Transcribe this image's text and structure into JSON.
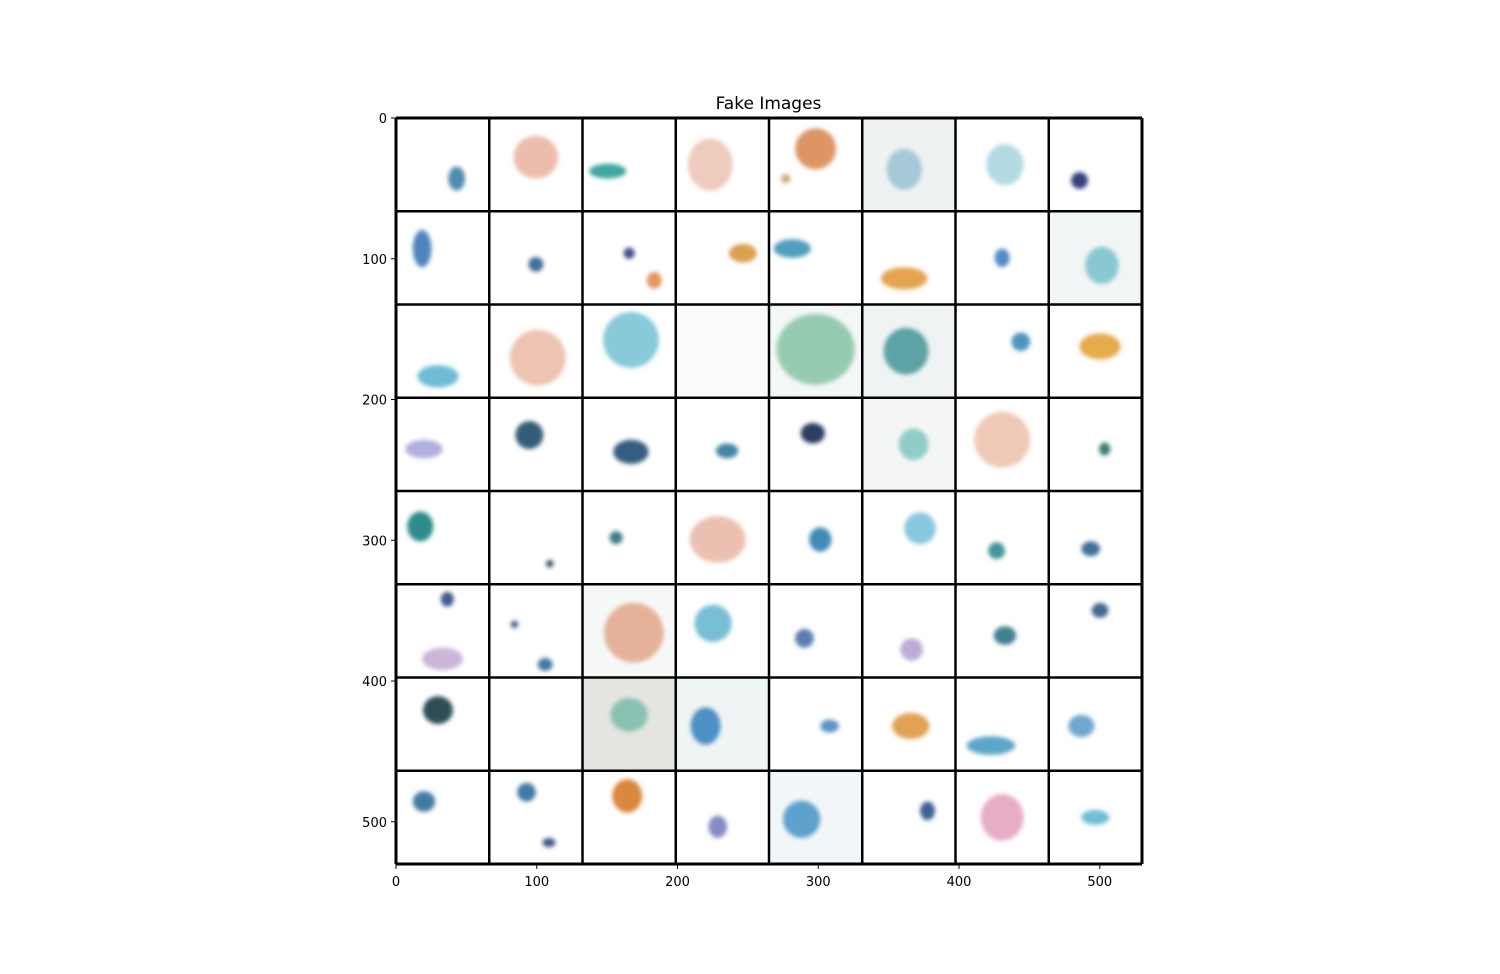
{
  "figure": {
    "title": "Fake Images",
    "x_ticks": [
      "0",
      "100",
      "200",
      "300",
      "400",
      "500"
    ],
    "y_ticks": [
      "0",
      "100",
      "200",
      "300",
      "400",
      "500"
    ],
    "x_tick_values": [
      0,
      100,
      200,
      300,
      400,
      500
    ],
    "y_tick_values": [
      0,
      100,
      200,
      300,
      400,
      500
    ],
    "pixel_range": [
      0,
      530
    ],
    "grid": {
      "rows": 8,
      "cols": 8
    },
    "tiles": [
      [
        {
          "bg": "#ffffff",
          "blobs": [
            {
              "cx": 0.65,
              "cy": 0.65,
              "rx": 0.09,
              "ry": 0.13,
              "color": "#3f7fa8"
            }
          ]
        },
        {
          "bg": "#ffffff",
          "blobs": [
            {
              "cx": 0.5,
              "cy": 0.42,
              "rx": 0.24,
              "ry": 0.23,
              "color": "#e9b6a3"
            }
          ]
        },
        {
          "bg": "#ffffff",
          "blobs": [
            {
              "cx": 0.27,
              "cy": 0.57,
              "rx": 0.2,
              "ry": 0.08,
              "color": "#2c9c98"
            }
          ]
        },
        {
          "bg": "#ffffff",
          "blobs": [
            {
              "cx": 0.37,
              "cy": 0.5,
              "rx": 0.24,
              "ry": 0.28,
              "color": "#ecc5b5"
            }
          ]
        },
        {
          "bg": "#ffffff",
          "blobs": [
            {
              "cx": 0.5,
              "cy": 0.33,
              "rx": 0.22,
              "ry": 0.22,
              "color": "#d98a53"
            },
            {
              "cx": 0.18,
              "cy": 0.65,
              "rx": 0.05,
              "ry": 0.05,
              "color": "#c8a070"
            }
          ]
        },
        {
          "bg": "#eef2f3",
          "blobs": [
            {
              "cx": 0.45,
              "cy": 0.55,
              "rx": 0.19,
              "ry": 0.22,
              "color": "#9cc4d4"
            }
          ]
        },
        {
          "bg": "#ffffff",
          "blobs": [
            {
              "cx": 0.53,
              "cy": 0.5,
              "rx": 0.2,
              "ry": 0.22,
              "color": "#a8d6e0"
            }
          ]
        },
        {
          "bg": "#ffffff",
          "blobs": [
            {
              "cx": 0.33,
              "cy": 0.67,
              "rx": 0.09,
              "ry": 0.09,
              "color": "#1d2e6e"
            }
          ]
        }
      ],
      [
        {
          "bg": "#ffffff",
          "blobs": [
            {
              "cx": 0.28,
              "cy": 0.4,
              "rx": 0.1,
              "ry": 0.2,
              "color": "#3a78b5"
            }
          ]
        },
        {
          "bg": "#ffffff",
          "blobs": [
            {
              "cx": 0.5,
              "cy": 0.57,
              "rx": 0.08,
              "ry": 0.08,
              "color": "#2d5e8d"
            }
          ]
        },
        {
          "bg": "#ffffff",
          "blobs": [
            {
              "cx": 0.5,
              "cy": 0.45,
              "rx": 0.06,
              "ry": 0.06,
              "color": "#2e3f7c"
            },
            {
              "cx": 0.77,
              "cy": 0.74,
              "rx": 0.08,
              "ry": 0.09,
              "color": "#e38a52"
            }
          ]
        },
        {
          "bg": "#ffffff",
          "blobs": [
            {
              "cx": 0.72,
              "cy": 0.45,
              "rx": 0.15,
              "ry": 0.1,
              "color": "#d7973a"
            }
          ]
        },
        {
          "bg": "#ffffff",
          "blobs": [
            {
              "cx": 0.25,
              "cy": 0.4,
              "rx": 0.2,
              "ry": 0.1,
              "color": "#3e93b8"
            }
          ]
        },
        {
          "bg": "#ffffff",
          "blobs": [
            {
              "cx": 0.45,
              "cy": 0.72,
              "rx": 0.25,
              "ry": 0.12,
              "color": "#e39a3f"
            }
          ]
        },
        {
          "bg": "#ffffff",
          "blobs": [
            {
              "cx": 0.5,
              "cy": 0.5,
              "rx": 0.08,
              "ry": 0.1,
              "color": "#3f7fc1"
            }
          ]
        },
        {
          "bg": "#f2f5f5",
          "blobs": [
            {
              "cx": 0.57,
              "cy": 0.58,
              "rx": 0.18,
              "ry": 0.2,
              "color": "#7dc3cf"
            }
          ]
        }
      ],
      [
        {
          "bg": "#ffffff",
          "blobs": [
            {
              "cx": 0.45,
              "cy": 0.77,
              "rx": 0.22,
              "ry": 0.12,
              "color": "#5db5cf"
            }
          ]
        },
        {
          "bg": "#ffffff",
          "blobs": [
            {
              "cx": 0.52,
              "cy": 0.57,
              "rx": 0.3,
              "ry": 0.3,
              "color": "#ebbca9"
            }
          ]
        },
        {
          "bg": "#ffffff",
          "blobs": [
            {
              "cx": 0.52,
              "cy": 0.38,
              "rx": 0.3,
              "ry": 0.3,
              "color": "#7cc3d6"
            }
          ]
        },
        {
          "bg": "#fbfbfb",
          "blobs": []
        },
        {
          "bg": "#f4f7f7",
          "blobs": [
            {
              "cx": 0.5,
              "cy": 0.48,
              "rx": 0.42,
              "ry": 0.38,
              "color": "#8cc6a8"
            }
          ]
        },
        {
          "bg": "#eff3f3",
          "blobs": [
            {
              "cx": 0.47,
              "cy": 0.5,
              "rx": 0.24,
              "ry": 0.25,
              "color": "#4c9a9c"
            }
          ]
        },
        {
          "bg": "#ffffff",
          "blobs": [
            {
              "cx": 0.7,
              "cy": 0.4,
              "rx": 0.1,
              "ry": 0.1,
              "color": "#3b8ab5"
            }
          ]
        },
        {
          "bg": "#ffffff",
          "blobs": [
            {
              "cx": 0.55,
              "cy": 0.45,
              "rx": 0.22,
              "ry": 0.14,
              "color": "#e3a237"
            }
          ]
        }
      ],
      [
        {
          "bg": "#ffffff",
          "blobs": [
            {
              "cx": 0.3,
              "cy": 0.55,
              "rx": 0.2,
              "ry": 0.1,
              "color": "#a8a6d8"
            }
          ]
        },
        {
          "bg": "#ffffff",
          "blobs": [
            {
              "cx": 0.43,
              "cy": 0.4,
              "rx": 0.15,
              "ry": 0.15,
              "color": "#1f4d6a"
            }
          ]
        },
        {
          "bg": "#ffffff",
          "blobs": [
            {
              "cx": 0.52,
              "cy": 0.58,
              "rx": 0.19,
              "ry": 0.13,
              "color": "#1c4e74"
            }
          ]
        },
        {
          "bg": "#ffffff",
          "blobs": [
            {
              "cx": 0.55,
              "cy": 0.57,
              "rx": 0.12,
              "ry": 0.08,
              "color": "#3178a0"
            }
          ]
        },
        {
          "bg": "#ffffff",
          "blobs": [
            {
              "cx": 0.47,
              "cy": 0.38,
              "rx": 0.13,
              "ry": 0.11,
              "color": "#162a52"
            }
          ]
        },
        {
          "bg": "#f3f6f5",
          "blobs": [
            {
              "cx": 0.55,
              "cy": 0.5,
              "rx": 0.16,
              "ry": 0.17,
              "color": "#84c9c4"
            }
          ]
        },
        {
          "bg": "#ffffff",
          "blobs": [
            {
              "cx": 0.5,
              "cy": 0.45,
              "rx": 0.3,
              "ry": 0.3,
              "color": "#ecc3b0"
            }
          ]
        },
        {
          "bg": "#ffffff",
          "blobs": [
            {
              "cx": 0.6,
              "cy": 0.55,
              "rx": 0.06,
              "ry": 0.07,
              "color": "#226f6a"
            }
          ]
        }
      ],
      [
        {
          "bg": "#ffffff",
          "blobs": [
            {
              "cx": 0.26,
              "cy": 0.38,
              "rx": 0.14,
              "ry": 0.16,
              "color": "#197f80"
            }
          ]
        },
        {
          "bg": "#ffffff",
          "blobs": [
            {
              "cx": 0.65,
              "cy": 0.78,
              "rx": 0.04,
              "ry": 0.04,
              "color": "#1b3d5a"
            }
          ]
        },
        {
          "bg": "#ffffff",
          "blobs": [
            {
              "cx": 0.36,
              "cy": 0.5,
              "rx": 0.07,
              "ry": 0.07,
              "color": "#2f6f7a"
            }
          ]
        },
        {
          "bg": "#ffffff",
          "blobs": [
            {
              "cx": 0.45,
              "cy": 0.52,
              "rx": 0.3,
              "ry": 0.25,
              "color": "#eab9a8"
            }
          ]
        },
        {
          "bg": "#ffffff",
          "blobs": [
            {
              "cx": 0.55,
              "cy": 0.52,
              "rx": 0.12,
              "ry": 0.13,
              "color": "#2f7eae"
            }
          ]
        },
        {
          "bg": "#ffffff",
          "blobs": [
            {
              "cx": 0.62,
              "cy": 0.4,
              "rx": 0.17,
              "ry": 0.17,
              "color": "#7cc2dc"
            }
          ]
        },
        {
          "bg": "#ffffff",
          "blobs": [
            {
              "cx": 0.44,
              "cy": 0.64,
              "rx": 0.09,
              "ry": 0.09,
              "color": "#2f8a8e"
            }
          ]
        },
        {
          "bg": "#ffffff",
          "blobs": [
            {
              "cx": 0.45,
              "cy": 0.62,
              "rx": 0.1,
              "ry": 0.08,
              "color": "#2e5f8d"
            }
          ]
        }
      ],
      [
        {
          "bg": "#ffffff",
          "blobs": [
            {
              "cx": 0.55,
              "cy": 0.16,
              "rx": 0.07,
              "ry": 0.08,
              "color": "#2c4a7c"
            },
            {
              "cx": 0.5,
              "cy": 0.8,
              "rx": 0.22,
              "ry": 0.12,
              "color": "#c4aed4"
            }
          ]
        },
        {
          "bg": "#ffffff",
          "blobs": [
            {
              "cx": 0.27,
              "cy": 0.43,
              "rx": 0.04,
              "ry": 0.04,
              "color": "#2c4a7c"
            },
            {
              "cx": 0.6,
              "cy": 0.86,
              "rx": 0.08,
              "ry": 0.07,
              "color": "#2f6aa0"
            }
          ]
        },
        {
          "bg": "#f6f8f8",
          "blobs": [
            {
              "cx": 0.55,
              "cy": 0.52,
              "rx": 0.32,
              "ry": 0.32,
              "color": "#e3a88e"
            }
          ]
        },
        {
          "bg": "#ffffff",
          "blobs": [
            {
              "cx": 0.4,
              "cy": 0.42,
              "rx": 0.2,
              "ry": 0.2,
              "color": "#6ab7d0"
            }
          ]
        },
        {
          "bg": "#ffffff",
          "blobs": [
            {
              "cx": 0.38,
              "cy": 0.58,
              "rx": 0.1,
              "ry": 0.1,
              "color": "#4a6fa8"
            }
          ]
        },
        {
          "bg": "#ffffff",
          "blobs": [
            {
              "cx": 0.53,
              "cy": 0.7,
              "rx": 0.12,
              "ry": 0.12,
              "color": "#b4a2d4"
            }
          ]
        },
        {
          "bg": "#ffffff",
          "blobs": [
            {
              "cx": 0.53,
              "cy": 0.55,
              "rx": 0.12,
              "ry": 0.1,
              "color": "#2b7482"
            }
          ]
        },
        {
          "bg": "#ffffff",
          "blobs": [
            {
              "cx": 0.55,
              "cy": 0.28,
              "rx": 0.09,
              "ry": 0.08,
              "color": "#2e5a82"
            }
          ]
        }
      ],
      [
        {
          "bg": "#ffffff",
          "blobs": [
            {
              "cx": 0.45,
              "cy": 0.35,
              "rx": 0.16,
              "ry": 0.15,
              "color": "#173c42"
            }
          ]
        },
        {
          "bg": "#ffffff",
          "blobs": []
        },
        {
          "bg": "#e4e4e0",
          "blobs": [
            {
              "cx": 0.5,
              "cy": 0.4,
              "rx": 0.2,
              "ry": 0.18,
              "color": "#7fbdac"
            }
          ]
        },
        {
          "bg": "#eff4f5",
          "blobs": [
            {
              "cx": 0.32,
              "cy": 0.52,
              "rx": 0.16,
              "ry": 0.2,
              "color": "#3a85bf"
            }
          ]
        },
        {
          "bg": "#ffffff",
          "blobs": [
            {
              "cx": 0.65,
              "cy": 0.52,
              "rx": 0.1,
              "ry": 0.07,
              "color": "#4a8ac0"
            }
          ]
        },
        {
          "bg": "#ffffff",
          "blobs": [
            {
              "cx": 0.52,
              "cy": 0.52,
              "rx": 0.2,
              "ry": 0.14,
              "color": "#dd9840"
            }
          ]
        },
        {
          "bg": "#ffffff",
          "blobs": [
            {
              "cx": 0.38,
              "cy": 0.73,
              "rx": 0.26,
              "ry": 0.1,
              "color": "#4b9dc3"
            }
          ]
        },
        {
          "bg": "#ffffff",
          "blobs": [
            {
              "cx": 0.35,
              "cy": 0.52,
              "rx": 0.14,
              "ry": 0.12,
              "color": "#5e9fc8"
            }
          ]
        }
      ],
      [
        {
          "bg": "#ffffff",
          "blobs": [
            {
              "cx": 0.3,
              "cy": 0.33,
              "rx": 0.12,
              "ry": 0.11,
              "color": "#2e6f96"
            }
          ]
        },
        {
          "bg": "#ffffff",
          "blobs": [
            {
              "cx": 0.4,
              "cy": 0.23,
              "rx": 0.1,
              "ry": 0.1,
              "color": "#2f6c9a"
            },
            {
              "cx": 0.64,
              "cy": 0.77,
              "rx": 0.07,
              "ry": 0.05,
              "color": "#2c4a7c"
            }
          ]
        },
        {
          "bg": "#ffffff",
          "blobs": [
            {
              "cx": 0.48,
              "cy": 0.27,
              "rx": 0.16,
              "ry": 0.18,
              "color": "#d77a28"
            }
          ]
        },
        {
          "bg": "#ffffff",
          "blobs": [
            {
              "cx": 0.45,
              "cy": 0.6,
              "rx": 0.1,
              "ry": 0.12,
              "color": "#7a7ec0"
            }
          ]
        },
        {
          "bg": "#f3f6f8",
          "blobs": [
            {
              "cx": 0.35,
              "cy": 0.52,
              "rx": 0.2,
              "ry": 0.2,
              "color": "#4d98c8"
            }
          ]
        },
        {
          "bg": "#ffffff",
          "blobs": [
            {
              "cx": 0.7,
              "cy": 0.43,
              "rx": 0.08,
              "ry": 0.1,
              "color": "#2b4c8a"
            }
          ]
        },
        {
          "bg": "#ffffff",
          "blobs": [
            {
              "cx": 0.5,
              "cy": 0.5,
              "rx": 0.23,
              "ry": 0.25,
              "color": "#e4a4c0"
            }
          ]
        },
        {
          "bg": "#ffffff",
          "blobs": [
            {
              "cx": 0.5,
              "cy": 0.5,
              "rx": 0.15,
              "ry": 0.08,
              "color": "#5fb6cf"
            }
          ]
        }
      ]
    ],
    "colors": {
      "grid_line": "#000000",
      "axis": "#000000",
      "background": "#ffffff"
    }
  }
}
